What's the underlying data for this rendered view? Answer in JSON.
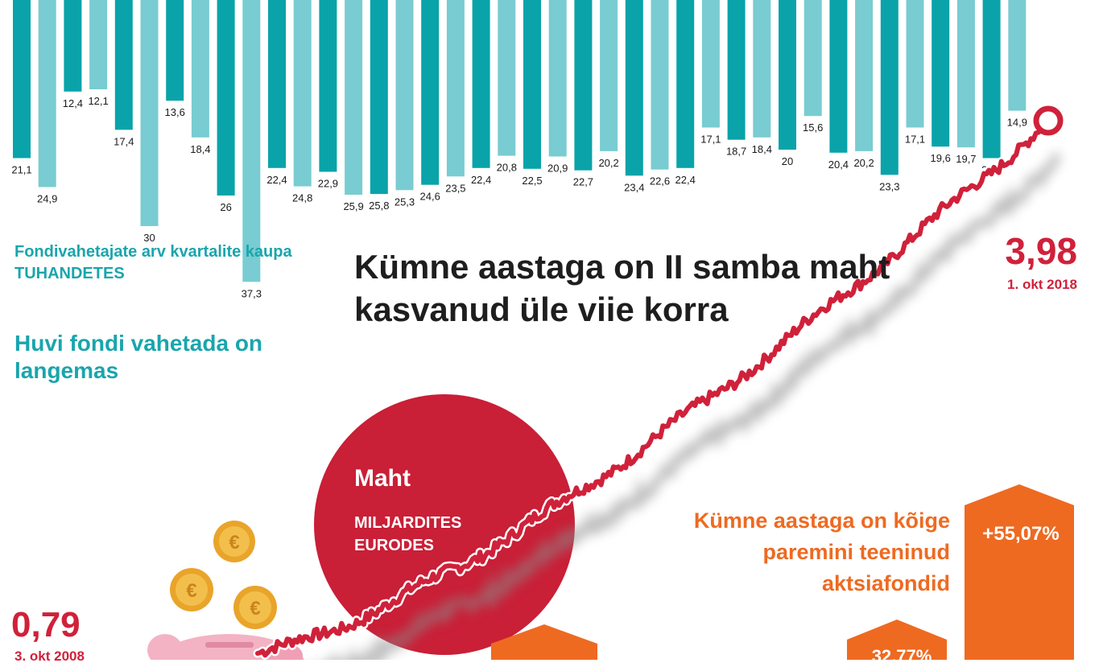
{
  "chart_data": [
    {
      "type": "bar",
      "title": "Huvi fondi vahetada on langemas",
      "subtitle": "Fondivahetajate arv kvartalite kaupa",
      "ylabel": "TUHANDETES",
      "values": [
        21.1,
        24.9,
        12.4,
        12.1,
        17.4,
        30,
        13.6,
        18.4,
        26,
        37.3,
        22.4,
        24.8,
        22.9,
        25.9,
        25.8,
        25.3,
        24.6,
        23.5,
        22.4,
        20.8,
        22.5,
        20.9,
        22.7,
        20.2,
        23.4,
        22.6,
        22.4,
        17.1,
        18.7,
        18.4,
        20,
        15.6,
        20.4,
        20.2,
        23.3,
        17.1,
        19.6,
        19.7,
        21.1,
        14.9
      ],
      "value_labels": [
        "21,1",
        "24,9",
        "12,4",
        "12,1",
        "17,4",
        "30",
        "13,6",
        "18,4",
        "26",
        "37,3",
        "22,4",
        "24,8",
        "22,9",
        "25,9",
        "25,8",
        "25,3",
        "24,6",
        "23,5",
        "22,4",
        "20,8",
        "22,5",
        "20,9",
        "22,7",
        "20,2",
        "23,4",
        "22,6",
        "22,4",
        "17,1",
        "18,7",
        "18,4",
        "20",
        "15,6",
        "20,4",
        "20,2",
        "23,3",
        "17,1",
        "19,6",
        "19,7",
        "21,1",
        "14,9"
      ],
      "colors": {
        "dark": "#0aa3aa",
        "light": "#79ccd1"
      }
    },
    {
      "type": "line",
      "title": "Kümne aastaga on II samba maht kasvanud üle viie korra",
      "series_label": "Maht",
      "unit": "MILJARDITES EURODES",
      "start": {
        "value": 0.79,
        "label": "0,79",
        "date": "3. okt 2008"
      },
      "end": {
        "value": 3.98,
        "label": "3,98",
        "date": "1. okt 2018"
      },
      "color": "#d0213a"
    },
    {
      "type": "bar",
      "title": "Kümne aastaga on kõige paremini teeninud aktsiafondid",
      "values": [
        55.07,
        32.77
      ],
      "value_labels": [
        "+55,07%",
        "32,77%"
      ],
      "color": "#ee6a21"
    }
  ],
  "texts": {
    "bars_caption": "Fondivahetajate arv kvartalite kaupa",
    "bars_unit": "TUHANDETES",
    "bars_headline": "Huvi fondi vahetada on langemas",
    "main_title": "Kümne aastaga on II samba maht kasvanud üle viie korra",
    "end_value": "3,98",
    "end_date": "1. okt 2018",
    "start_value": "0,79",
    "start_date": "3. okt 2008",
    "bubble_title": "Maht",
    "bubble_unit": "MILJARDITES EURODES",
    "funds_title": "Kümne aastaga on kõige paremini teeninud aktsiafondid",
    "funds_top_value": "+55,07%",
    "funds_mid_value": "32,77%"
  },
  "colors": {
    "teal": "#0aa3aa",
    "teal_light": "#79ccd1",
    "red": "#d0213a",
    "orange": "#ee6a21",
    "pink": "#f3b3c4",
    "gold": "#e9a42a"
  },
  "icons": [
    "piggy-bank-icon",
    "euro-coin-icon"
  ]
}
